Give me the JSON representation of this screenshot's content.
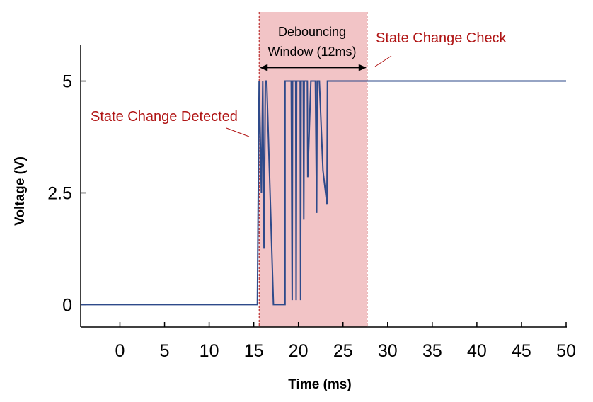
{
  "chart_data": {
    "type": "line",
    "xlabel": "Time (ms)",
    "ylabel": "Voltage (V)",
    "xlim": [
      -4.4,
      50
    ],
    "ylim": [
      -0.5,
      5.8
    ],
    "x_ticks": [
      0,
      5,
      10,
      15,
      20,
      25,
      30,
      35,
      40,
      45,
      50
    ],
    "y_ticks": [
      0,
      2.5,
      5
    ],
    "x_tick_labels": [
      "0",
      "5",
      "10",
      "15",
      "20",
      "25",
      "30",
      "35",
      "40",
      "45",
      "50"
    ],
    "y_tick_labels": [
      "0",
      "2.5",
      "5"
    ],
    "grid": false,
    "series": [
      {
        "color": "#2e4a8a",
        "x": [
          -4.4,
          15.4,
          15.6,
          15.85,
          16.0,
          16.15,
          16.3,
          16.45,
          17.2,
          18.5,
          18.5,
          19.2,
          19.3,
          19.35,
          19.7,
          19.75,
          19.8,
          20.2,
          20.25,
          20.3,
          20.55,
          20.6,
          20.65,
          21.0,
          21.05,
          21.4,
          21.9,
          22.05,
          22.1,
          22.35,
          22.75,
          23.2,
          23.25,
          23.3,
          50
        ],
        "y": [
          0,
          0,
          5,
          2.5,
          5,
          1.25,
          5,
          5,
          0,
          0,
          5,
          5,
          0.1,
          5,
          5,
          0.1,
          5,
          5,
          0.1,
          5,
          5,
          1.9,
          5,
          5,
          2.85,
          5,
          5,
          2.05,
          5,
          5,
          3.0,
          2.25,
          5,
          5,
          5
        ]
      }
    ],
    "shaded_region": {
      "x_start": 15.6,
      "x_end": 27.7,
      "color": "#f2c4c6",
      "border_color": "#b01414"
    },
    "annotations": {
      "window_label_line1": "Debouncing",
      "window_label_line2": "Window (12ms)",
      "detected_label": "State Change Detected",
      "check_label": "State Change Check",
      "window_arrow": {
        "x_start": 15.6,
        "x_end": 27.7,
        "y": 5.3
      }
    },
    "colors": {
      "line": "#2e4a8a",
      "annotation": "#b01414"
    }
  }
}
